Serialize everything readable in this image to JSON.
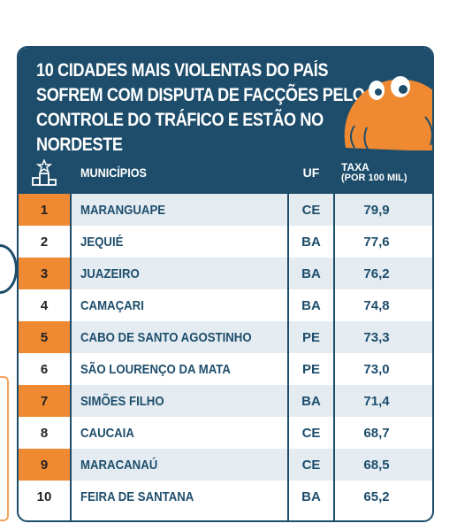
{
  "title": "10 CIDADES MAIS VIOLENTAS DO PAÍS SOFREM COM DISPUTA DE FACÇÕES PELO CONTROLE DO TRÁFICO E ESTÃO NO NORDESTE",
  "header": {
    "rank_icon": "podium-icon",
    "municipio": "MUNICÍPIOS",
    "uf": "UF",
    "taxa": "TAXA",
    "taxa_sub": "(POR 100 MIL)"
  },
  "colors": {
    "primary": "#1d4d6b",
    "accent": "#f08a32",
    "row_alt": "#e4ecf2"
  },
  "rows": [
    {
      "rank": "1",
      "municipio": "MARANGUAPE",
      "uf": "CE",
      "taxa": "79,9"
    },
    {
      "rank": "2",
      "municipio": "JEQUIÉ",
      "uf": "BA",
      "taxa": "77,6"
    },
    {
      "rank": "3",
      "municipio": "JUAZEIRO",
      "uf": "BA",
      "taxa": "76,2"
    },
    {
      "rank": "4",
      "municipio": "CAMAÇARI",
      "uf": "BA",
      "taxa": "74,8"
    },
    {
      "rank": "5",
      "municipio": "CABO DE SANTO AGOSTINHO",
      "uf": "PE",
      "taxa": "73,3"
    },
    {
      "rank": "6",
      "municipio": "SÃO LOURENÇO DA MATA",
      "uf": "PE",
      "taxa": "73,0"
    },
    {
      "rank": "7",
      "municipio": "SIMÕES FILHO",
      "uf": "BA",
      "taxa": "71,4"
    },
    {
      "rank": "8",
      "municipio": "CAUCAIA",
      "uf": "CE",
      "taxa": "68,7"
    },
    {
      "rank": "9",
      "municipio": "MARACANAÚ",
      "uf": "CE",
      "taxa": "68,5"
    },
    {
      "rank": "10",
      "municipio": "FEIRA DE SANTANA",
      "uf": "BA",
      "taxa": "65,2"
    }
  ]
}
